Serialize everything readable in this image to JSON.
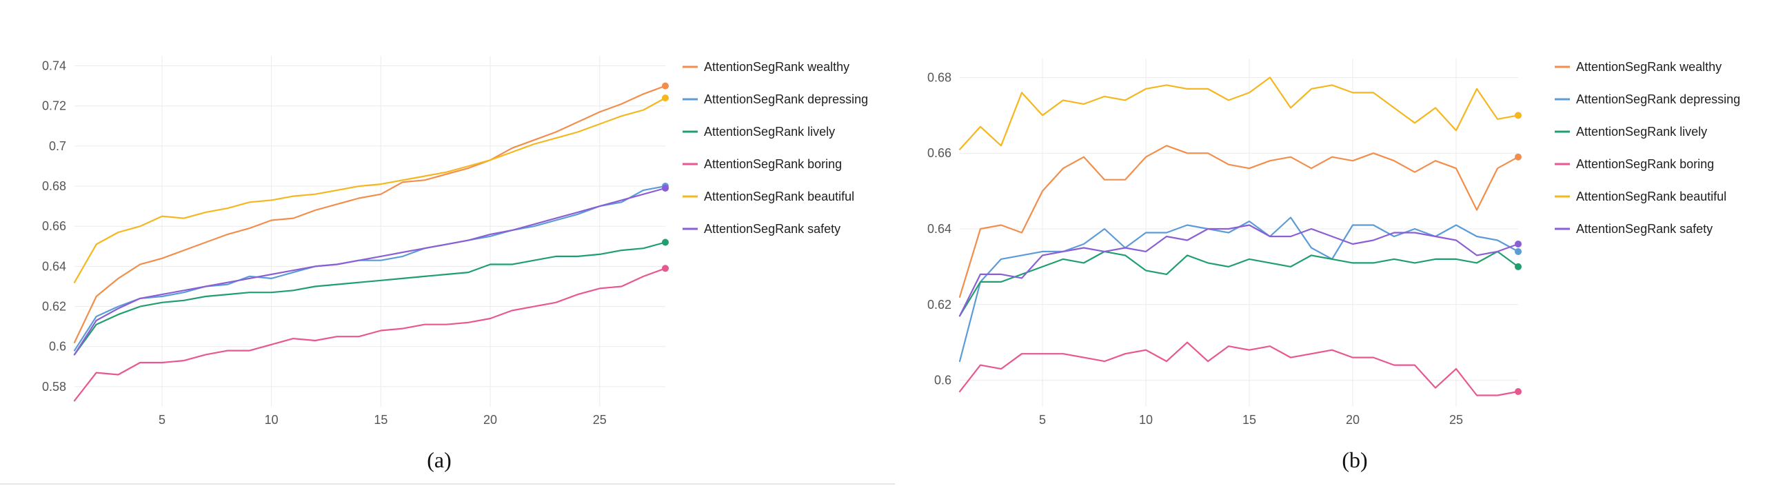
{
  "chart_data": [
    {
      "type": "line",
      "caption": "(a)",
      "ylim": [
        0.57,
        0.745
      ],
      "xlim": [
        1,
        28
      ],
      "y_ticks": [
        "0.58",
        "0.6",
        "0.62",
        "0.64",
        "0.66",
        "0.68",
        "0.7",
        "0.72",
        "0.74"
      ],
      "x_ticks": [
        "5",
        "10",
        "15",
        "20",
        "25"
      ],
      "grid": true,
      "legend_position": "right",
      "x": [
        1,
        2,
        3,
        4,
        5,
        6,
        7,
        8,
        9,
        10,
        11,
        12,
        13,
        14,
        15,
        16,
        17,
        18,
        19,
        20,
        21,
        22,
        23,
        24,
        25,
        26,
        27,
        28
      ],
      "series": [
        {
          "name": "AttentionSegRank wealthy",
          "color": "#f28e4c",
          "values": [
            0.602,
            0.625,
            0.634,
            0.641,
            0.644,
            0.648,
            0.652,
            0.656,
            0.659,
            0.663,
            0.664,
            0.668,
            0.671,
            0.674,
            0.676,
            0.682,
            0.683,
            0.686,
            0.689,
            0.693,
            0.699,
            0.703,
            0.707,
            0.712,
            0.717,
            0.721,
            0.726,
            0.73
          ]
        },
        {
          "name": "AttentionSegRank depressing",
          "color": "#5b9bd8",
          "values": [
            0.598,
            0.615,
            0.62,
            0.624,
            0.625,
            0.627,
            0.63,
            0.631,
            0.635,
            0.634,
            0.637,
            0.64,
            0.641,
            0.643,
            0.643,
            0.645,
            0.649,
            0.651,
            0.653,
            0.655,
            0.658,
            0.66,
            0.663,
            0.666,
            0.67,
            0.672,
            0.678,
            0.68
          ]
        },
        {
          "name": "AttentionSegRank lively",
          "color": "#1f9e6e",
          "values": [
            0.596,
            0.611,
            0.616,
            0.62,
            0.622,
            0.623,
            0.625,
            0.626,
            0.627,
            0.627,
            0.628,
            0.63,
            0.631,
            0.632,
            0.633,
            0.634,
            0.635,
            0.636,
            0.637,
            0.641,
            0.641,
            0.643,
            0.645,
            0.645,
            0.646,
            0.648,
            0.649,
            0.652
          ]
        },
        {
          "name": "AttentionSegRank boring",
          "color": "#e8578f",
          "values": [
            0.573,
            0.587,
            0.586,
            0.592,
            0.592,
            0.593,
            0.596,
            0.598,
            0.598,
            0.601,
            0.604,
            0.603,
            0.605,
            0.605,
            0.608,
            0.609,
            0.611,
            0.611,
            0.612,
            0.614,
            0.618,
            0.62,
            0.622,
            0.626,
            0.629,
            0.63,
            0.635,
            0.639
          ]
        },
        {
          "name": "AttentionSegRank beautiful",
          "color": "#f5b61e",
          "values": [
            0.632,
            0.651,
            0.657,
            0.66,
            0.665,
            0.664,
            0.667,
            0.669,
            0.672,
            0.673,
            0.675,
            0.676,
            0.678,
            0.68,
            0.681,
            0.683,
            0.685,
            0.687,
            0.69,
            0.693,
            0.697,
            0.701,
            0.704,
            0.707,
            0.711,
            0.715,
            0.718,
            0.724
          ]
        },
        {
          "name": "AttentionSegRank safety",
          "color": "#8a5fd6",
          "values": [
            0.596,
            0.613,
            0.619,
            0.624,
            0.626,
            0.628,
            0.63,
            0.632,
            0.634,
            0.636,
            0.638,
            0.64,
            0.641,
            0.643,
            0.645,
            0.647,
            0.649,
            0.651,
            0.653,
            0.656,
            0.658,
            0.661,
            0.664,
            0.667,
            0.67,
            0.673,
            0.676,
            0.679
          ]
        }
      ]
    },
    {
      "type": "line",
      "caption": "(b)",
      "ylim": [
        0.593,
        0.685
      ],
      "xlim": [
        1,
        28
      ],
      "y_ticks": [
        "0.6",
        "0.62",
        "0.64",
        "0.66",
        "0.68"
      ],
      "x_ticks": [
        "5",
        "10",
        "15",
        "20",
        "25"
      ],
      "grid": true,
      "legend_position": "right",
      "x": [
        1,
        2,
        3,
        4,
        5,
        6,
        7,
        8,
        9,
        10,
        11,
        12,
        13,
        14,
        15,
        16,
        17,
        18,
        19,
        20,
        21,
        22,
        23,
        24,
        25,
        26,
        27,
        28
      ],
      "series": [
        {
          "name": "AttentionSegRank wealthy",
          "color": "#f28e4c",
          "values": [
            0.622,
            0.64,
            0.641,
            0.639,
            0.65,
            0.656,
            0.659,
            0.653,
            0.653,
            0.659,
            0.662,
            0.66,
            0.66,
            0.657,
            0.656,
            0.658,
            0.659,
            0.656,
            0.659,
            0.658,
            0.66,
            0.658,
            0.655,
            0.658,
            0.656,
            0.645,
            0.656,
            0.659
          ]
        },
        {
          "name": "AttentionSegRank depressing",
          "color": "#5b9bd8",
          "values": [
            0.605,
            0.626,
            0.632,
            0.633,
            0.634,
            0.634,
            0.636,
            0.64,
            0.635,
            0.639,
            0.639,
            0.641,
            0.64,
            0.639,
            0.642,
            0.638,
            0.643,
            0.635,
            0.632,
            0.641,
            0.641,
            0.638,
            0.64,
            0.638,
            0.641,
            0.638,
            0.637,
            0.634
          ]
        },
        {
          "name": "AttentionSegRank lively",
          "color": "#1f9e6e",
          "values": [
            0.617,
            0.626,
            0.626,
            0.628,
            0.63,
            0.632,
            0.631,
            0.634,
            0.633,
            0.629,
            0.628,
            0.633,
            0.631,
            0.63,
            0.632,
            0.631,
            0.63,
            0.633,
            0.632,
            0.631,
            0.631,
            0.632,
            0.631,
            0.632,
            0.632,
            0.631,
            0.634,
            0.63
          ]
        },
        {
          "name": "AttentionSegRank boring",
          "color": "#e8578f",
          "values": [
            0.597,
            0.604,
            0.603,
            0.607,
            0.607,
            0.607,
            0.606,
            0.605,
            0.607,
            0.608,
            0.605,
            0.61,
            0.605,
            0.609,
            0.608,
            0.609,
            0.606,
            0.607,
            0.608,
            0.606,
            0.606,
            0.604,
            0.604,
            0.598,
            0.603,
            0.596,
            0.596,
            0.597
          ]
        },
        {
          "name": "AttentionSegRank beautiful",
          "color": "#f5b61e",
          "values": [
            0.661,
            0.667,
            0.662,
            0.676,
            0.67,
            0.674,
            0.673,
            0.675,
            0.674,
            0.677,
            0.678,
            0.677,
            0.677,
            0.674,
            0.676,
            0.68,
            0.672,
            0.677,
            0.678,
            0.676,
            0.676,
            0.672,
            0.668,
            0.672,
            0.666,
            0.677,
            0.669,
            0.67
          ]
        },
        {
          "name": "AttentionSegRank safety",
          "color": "#8a5fd6",
          "values": [
            0.617,
            0.628,
            0.628,
            0.627,
            0.633,
            0.634,
            0.635,
            0.634,
            0.635,
            0.634,
            0.638,
            0.637,
            0.64,
            0.64,
            0.641,
            0.638,
            0.638,
            0.64,
            0.638,
            0.636,
            0.637,
            0.639,
            0.639,
            0.638,
            0.637,
            0.633,
            0.634,
            0.636
          ]
        }
      ]
    }
  ]
}
